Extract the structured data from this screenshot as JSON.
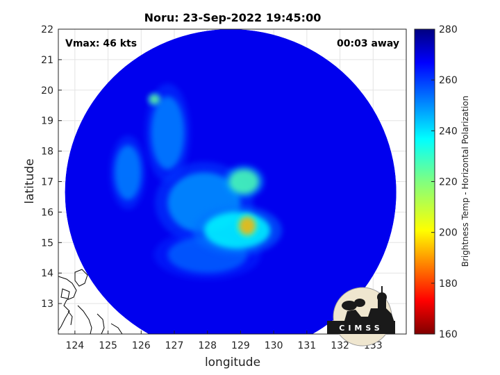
{
  "chart_data": {
    "type": "heatmap",
    "title": "Noru: 23-Sep-2022 19:45:00",
    "xlabel": "longitude",
    "ylabel": "latitude",
    "xlim": [
      123.5,
      134
    ],
    "ylim": [
      12,
      22
    ],
    "xticks": [
      124,
      125,
      126,
      127,
      128,
      129,
      130,
      131,
      132,
      133
    ],
    "yticks": [
      13,
      14,
      15,
      16,
      17,
      18,
      19,
      20,
      21,
      22
    ],
    "grid": true,
    "annotations": {
      "vmax": "Vmax: 46 kts",
      "time_offset": "00:03 away"
    },
    "colorbar": {
      "label": "Brightness Temp - Horizontal Polarization",
      "range": [
        160,
        280
      ],
      "ticks": [
        160,
        180,
        200,
        220,
        240,
        260,
        280
      ],
      "colormap": "jet"
    },
    "swath": {
      "center_lon": 128.7,
      "center_lat": 16.65,
      "radius_lon": 5.0,
      "radius_lat": 5.35,
      "background_value": 267
    },
    "features": [
      {
        "kind": "eyewall",
        "lon": 129.2,
        "lat": 15.55,
        "value": 196,
        "spread_lon": 0.25,
        "spread_lat": 0.3
      },
      {
        "kind": "rainband",
        "lon": 129.1,
        "lat": 17.0,
        "value": 226,
        "spread_lon": 0.45,
        "spread_lat": 0.4
      },
      {
        "kind": "convection",
        "lon": 128.9,
        "lat": 15.4,
        "value": 236,
        "spread_lon": 1.0,
        "spread_lat": 0.6
      },
      {
        "kind": "convection",
        "lon": 127.9,
        "lat": 16.3,
        "value": 248,
        "spread_lon": 1.1,
        "spread_lat": 1.0
      },
      {
        "kind": "convection",
        "lon": 126.4,
        "lat": 19.7,
        "value": 222,
        "spread_lon": 0.15,
        "spread_lat": 0.15
      },
      {
        "kind": "rainband",
        "lon": 126.8,
        "lat": 18.6,
        "value": 250,
        "spread_lon": 0.5,
        "spread_lat": 1.2
      },
      {
        "kind": "rainband",
        "lon": 125.6,
        "lat": 17.3,
        "value": 250,
        "spread_lon": 0.4,
        "spread_lat": 0.9
      },
      {
        "kind": "convection",
        "lon": 128.0,
        "lat": 14.6,
        "value": 254,
        "spread_lon": 1.2,
        "spread_lat": 0.6
      }
    ],
    "logo_text": "CIMSS"
  }
}
